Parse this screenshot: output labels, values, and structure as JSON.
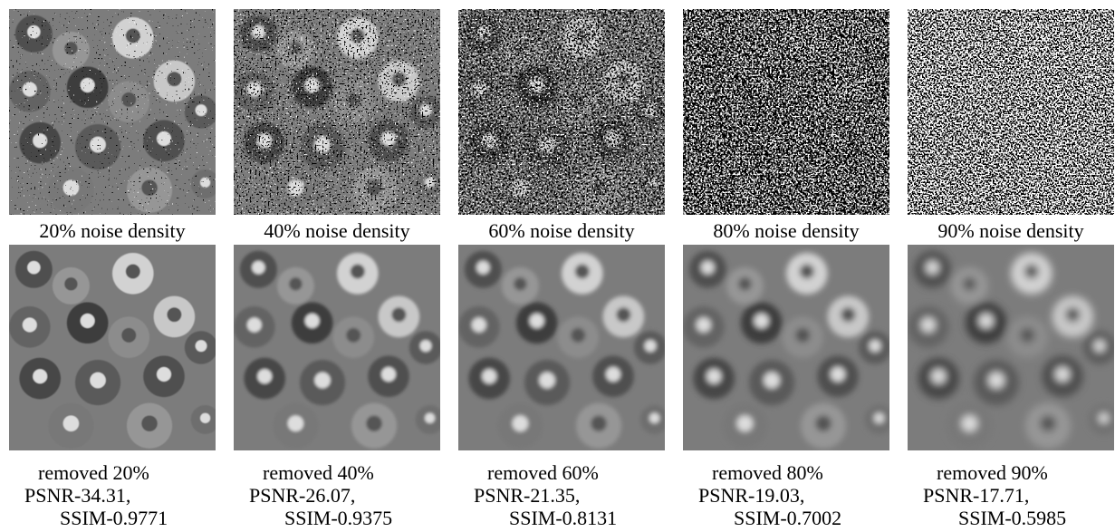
{
  "panels": [
    {
      "noisy_caption": "20% noise density",
      "restored_caption": [
        "removed 20%",
        "PSNR-34.31,",
        "SSIM-0.9771"
      ]
    },
    {
      "noisy_caption": "40% noise density",
      "restored_caption": [
        "removed 40%",
        "PSNR-26.07,",
        "SSIM-0.9375"
      ]
    },
    {
      "noisy_caption": "60% noise density",
      "restored_caption": [
        "removed 60%",
        "PSNR-21.35,",
        "SSIM-0.8131"
      ]
    },
    {
      "noisy_caption": "80% noise density",
      "restored_caption": [
        "removed 80%",
        "PSNR-19.03,",
        "SSIM-0.7002"
      ]
    },
    {
      "noisy_caption": "90% noise density",
      "restored_caption": [
        "removed 90%",
        "PSNR-17.71,",
        "SSIM-0.5985"
      ]
    }
  ]
}
